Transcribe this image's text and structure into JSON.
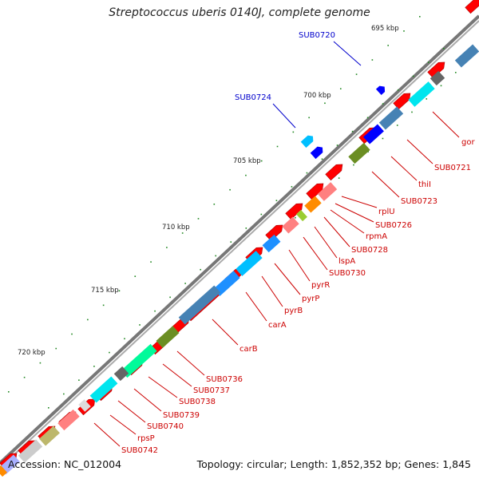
{
  "map": {
    "title": "Streptococcus uberis 0140J, complete genome",
    "accession": "Accession: NC_012004",
    "topology": "Topology: circular; Length: 1,852,352 bp; Genes: 1,845"
  },
  "scale_ticks": [
    {
      "label": "695 kbp",
      "kbp": 695
    },
    {
      "label": "700 kbp",
      "kbp": 700
    },
    {
      "label": "705 kbp",
      "kbp": 705
    },
    {
      "label": "710 kbp",
      "kbp": 710
    },
    {
      "label": "715 kbp",
      "kbp": 715
    },
    {
      "label": "720 kbp",
      "kbp": 720
    }
  ],
  "blue_labels": [
    {
      "text": "SUB0720"
    },
    {
      "text": "SUB0724"
    }
  ],
  "red_labels": [
    {
      "text": "gor"
    },
    {
      "text": "SUB0721"
    },
    {
      "text": "thiI"
    },
    {
      "text": "SUB0723"
    },
    {
      "text": "rplU"
    },
    {
      "text": "SUB0726"
    },
    {
      "text": "rpmA"
    },
    {
      "text": "SUB0728"
    },
    {
      "text": "lspA"
    },
    {
      "text": "SUB0730"
    },
    {
      "text": "pyrR"
    },
    {
      "text": "pyrP"
    },
    {
      "text": "pyrB"
    },
    {
      "text": "carA"
    },
    {
      "text": "carB"
    },
    {
      "text": "SUB0736"
    },
    {
      "text": "SUB0737"
    },
    {
      "text": "SUB0738"
    },
    {
      "text": "SUB0739"
    },
    {
      "text": "SUB0740"
    },
    {
      "text": "rpsP"
    },
    {
      "text": "SUB0742"
    }
  ],
  "colors": {
    "gene": "#ff0000",
    "backbone": "#777777",
    "label_red": "#cc0000",
    "label_blue": "#0000cc",
    "tick": "#228822"
  }
}
